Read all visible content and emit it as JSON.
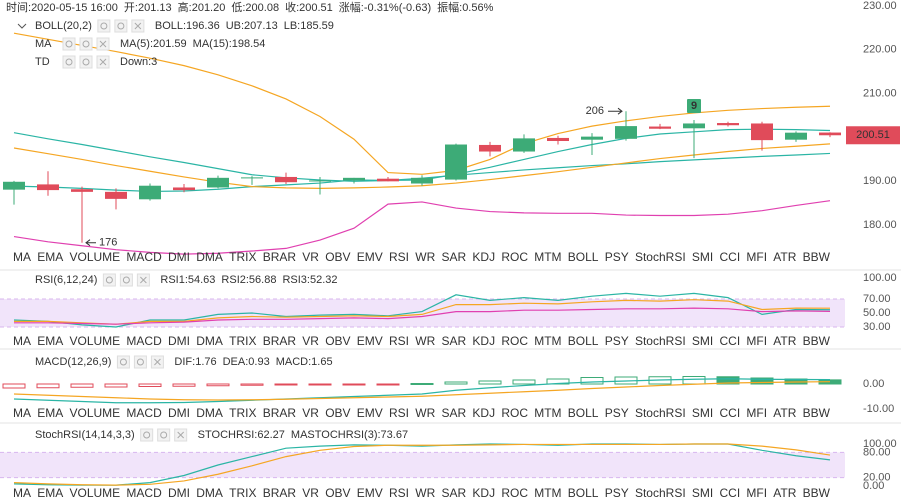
{
  "header": [
    {
      "label": "时间:",
      "value": "2020-05-15 16:00"
    },
    {
      "label": "开:",
      "value": "201.13"
    },
    {
      "label": "高:",
      "value": "201.20"
    },
    {
      "label": "低:",
      "value": "200.08"
    },
    {
      "label": "收:",
      "value": "200.51"
    },
    {
      "label": "涨幅:",
      "value": "-0.31%(-0.63)",
      "color": "#e04b5a"
    },
    {
      "label": "振幅:",
      "value": "0.56%"
    }
  ],
  "indicator_tabs": [
    "MA",
    "EMA",
    "VOLUME",
    "MACD",
    "DMI",
    "DMA",
    "TRIX",
    "BRAR",
    "VR",
    "OBV",
    "EMV",
    "RSI",
    "WR",
    "SAR",
    "KDJ",
    "ROC",
    "MTM",
    "BOLL",
    "PSY",
    "StochRSI",
    "SMI",
    "CCI",
    "MFI",
    "ATR",
    "BBW"
  ],
  "chart_data": [
    {
      "type": "candlestick",
      "open": [
        188.1,
        189.3,
        188.2,
        187.6,
        185.9,
        188.6,
        188.6,
        190.7,
        191.0,
        190.1,
        190.2,
        190.6,
        189.5,
        190.4,
        198.3,
        196.8,
        199.9,
        199.5,
        199.7,
        202.5,
        202.1,
        203.3,
        203.2,
        199.5,
        201.13
      ],
      "high": [
        190.1,
        192.3,
        188.8,
        188.4,
        189.5,
        189.4,
        191.3,
        191.2,
        192.0,
        191.0,
        190.8,
        191.0,
        191.4,
        198.6,
        199.0,
        200.7,
        200.4,
        201.0,
        206.0,
        203.1,
        204.0,
        203.6,
        203.6,
        201.4,
        201.2
      ],
      "low": [
        184.7,
        186.7,
        176.0,
        183.6,
        185.6,
        187.5,
        188.4,
        189.2,
        189.4,
        187.0,
        189.5,
        190.0,
        189.0,
        190.2,
        195.7,
        196.5,
        198.4,
        196.0,
        199.3,
        201.9,
        195.3,
        202.5,
        197.0,
        199.0,
        200.08
      ],
      "close": [
        189.9,
        188.0,
        187.6,
        186.0,
        189.0,
        188.0,
        190.8,
        190.9,
        189.8,
        190.2,
        190.8,
        190.0,
        190.8,
        198.4,
        196.8,
        199.8,
        199.2,
        200.2,
        202.6,
        202.0,
        203.2,
        202.8,
        199.4,
        201.1,
        200.51
      ],
      "up_color": "#3dab77",
      "down_color": "#e04b5a",
      "high_label": "206",
      "low_label": "176",
      "ylim": [
        170,
        230
      ],
      "yticks": [
        {
          "value": 230,
          "label": "230.00"
        },
        {
          "value": 220,
          "label": "220.00"
        },
        {
          "value": 210,
          "label": "210.00"
        },
        {
          "value": 200,
          "label": "200.00"
        },
        {
          "value": 190,
          "label": "190.00"
        },
        {
          "value": 180,
          "label": "180.00"
        }
      ],
      "indicators": [
        {
          "name": "BOLL(20,2)",
          "series": [
            {
              "legend": "BOLL:196.36",
              "color": "#2bb5a5",
              "values": [
                201.1,
                199.7,
                198.4,
                197.0,
                195.6,
                194.3,
                192.9,
                191.5,
                190.8,
                190.3,
                190.0,
                190.2,
                190.7,
                191.4,
                192.0,
                192.6,
                193.1,
                193.6,
                194.0,
                194.5,
                194.9,
                195.3,
                195.7,
                196.0,
                196.36
              ]
            },
            {
              "legend": "UB:207.13",
              "color": "#f5a623",
              "values": [
                223.8,
                222.4,
                221.0,
                219.6,
                218.1,
                216.4,
                214.3,
                211.8,
                208.8,
                204.8,
                199.6,
                192.0,
                191.6,
                192.5,
                195.0,
                198.6,
                200.9,
                202.6,
                203.8,
                204.8,
                205.6,
                206.2,
                206.6,
                206.9,
                207.13
              ]
            },
            {
              "legend": "LB:185.59",
              "color": "#e040b0",
              "values": [
                177.4,
                176.2,
                175.3,
                174.4,
                173.8,
                173.4,
                173.6,
                174.1,
                174.7,
                176.6,
                179.3,
                184.8,
                185.3,
                183.9,
                183.1,
                182.8,
                182.7,
                182.7,
                182.3,
                182.2,
                182.2,
                182.5,
                183.3,
                184.5,
                185.59
              ]
            }
          ]
        },
        {
          "name": "MA",
          "series": [
            {
              "legend": "MA(5):201.59",
              "color": "#2bb5a5",
              "values": [
                188.9,
                188.7,
                188.4,
                188.0,
                187.7,
                187.8,
                188.2,
                188.8,
                189.2,
                189.6,
                190.3,
                190.2,
                190.3,
                191.6,
                193.2,
                195.0,
                196.8,
                198.4,
                199.8,
                200.8,
                201.3,
                201.8,
                201.9,
                201.8,
                201.59
              ]
            },
            {
              "legend": "MA(15):198.54",
              "color": "#f5a623",
              "values": [
                197.6,
                196.3,
                195.0,
                193.6,
                192.3,
                191.0,
                189.8,
                188.8,
                188.5,
                188.4,
                188.5,
                188.7,
                189.0,
                189.6,
                190.4,
                191.3,
                192.2,
                193.2,
                194.2,
                195.2,
                196.0,
                196.8,
                197.5,
                198.0,
                198.54
              ]
            }
          ]
        },
        {
          "name": "TD",
          "series": [
            {
              "legend": "Down:3",
              "color": "#e04b5a",
              "mark_color": "#3dab77",
              "counts": [
                null,
                null,
                null,
                null,
                null,
                null,
                null,
                null,
                null,
                null,
                null,
                null,
                null,
                null,
                null,
                null,
                null,
                null,
                null,
                null,
                9,
                null,
                null,
                null,
                null
              ]
            }
          ]
        }
      ]
    },
    {
      "type": "line",
      "title": "RSI(6,12,24)",
      "ylim": [
        0,
        100
      ],
      "yticks": [
        {
          "value": 100,
          "label": "100.00"
        },
        {
          "value": 70,
          "label": "70.00"
        },
        {
          "value": 50,
          "label": "50.00"
        },
        {
          "value": 30,
          "label": "30.00"
        }
      ],
      "band": [
        30,
        70
      ],
      "band_color": "#f1e4fa",
      "series": [
        {
          "legend": "RSI1:54.63",
          "color": "#2bb5a5",
          "values": [
            40,
            38,
            33,
            30,
            40,
            40,
            48,
            50,
            45,
            47,
            48,
            46,
            52,
            76,
            68,
            72,
            68,
            74,
            78,
            74,
            78,
            72,
            48,
            55,
            54.63
          ]
        },
        {
          "legend": "RSI2:56.88",
          "color": "#f5a623",
          "values": [
            38,
            38,
            36,
            34,
            38,
            38,
            43,
            45,
            44,
            45,
            46,
            45,
            48,
            62,
            62,
            64,
            63,
            66,
            68,
            67,
            69,
            67,
            55,
            57,
            56.88
          ]
        },
        {
          "legend": "RSI3:52.32",
          "color": "#e040b0",
          "values": [
            36,
            36,
            35,
            34,
            36,
            37,
            40,
            41,
            41,
            42,
            43,
            42,
            45,
            52,
            52,
            54,
            54,
            55,
            56,
            56,
            57,
            56,
            52,
            53,
            52.32
          ]
        }
      ]
    },
    {
      "type": "macd",
      "title": "MACD(12,26,9)",
      "ylim": [
        -14,
        12
      ],
      "yticks": [
        {
          "value": 0,
          "label": "0.00"
        },
        {
          "value": -10,
          "label": "-10.00"
        }
      ],
      "series": [
        {
          "legend": "DIF:1.76",
          "color": "#2bb5a5",
          "values": [
            -6,
            -6.5,
            -7,
            -7.5,
            -7.5,
            -7.4,
            -7,
            -6.5,
            -6,
            -5.5,
            -5,
            -4.5,
            -4,
            -2.5,
            -1.5,
            -0.6,
            0.2,
            0.8,
            1.2,
            1.6,
            1.9,
            2.1,
            1.9,
            1.8,
            1.76
          ]
        },
        {
          "legend": "DEA:0.93",
          "color": "#f5a623",
          "values": [
            -4,
            -4.5,
            -5,
            -5.5,
            -6,
            -6.3,
            -6.4,
            -6.3,
            -6.1,
            -5.8,
            -5.5,
            -5.2,
            -4.9,
            -4.3,
            -3.7,
            -3.1,
            -2.5,
            -1.8,
            -1.2,
            -0.6,
            -0.1,
            0.4,
            0.6,
            0.8,
            0.93
          ]
        }
      ],
      "histogram": {
        "legend": "MACD:1.65",
        "color": "#3dab77",
        "negative_color": "#e04b5a",
        "values": [
          -1.6,
          -1.5,
          -1.3,
          -1.2,
          -1.0,
          -0.9,
          -0.7,
          -0.5,
          -0.4,
          -0.3,
          -0.2,
          -0.1,
          0.2,
          0.8,
          1.2,
          1.6,
          2.0,
          2.6,
          2.8,
          2.9,
          3.0,
          2.9,
          2.4,
          2.0,
          1.65
        ]
      }
    },
    {
      "type": "line",
      "title": "StochRSI(14,14,3,3)",
      "ylim": [
        0,
        100
      ],
      "yticks": [
        {
          "value": 100,
          "label": "100.00"
        },
        {
          "value": 80,
          "label": "80.00"
        },
        {
          "value": 20,
          "label": "20.00"
        },
        {
          "value": 0,
          "label": "0.00"
        }
      ],
      "band": [
        20,
        80
      ],
      "band_color": "#f1e4fa",
      "series": [
        {
          "legend": "STOCHRSI:62.27",
          "color": "#2bb5a5",
          "values": [
            5,
            3,
            2,
            2,
            8,
            25,
            50,
            70,
            90,
            95,
            98,
            97,
            95,
            98,
            100,
            99,
            97,
            100,
            100,
            99,
            100,
            100,
            85,
            72,
            62.27
          ]
        },
        {
          "legend": "MASTOCHRSI(3):73.67",
          "color": "#f5a623",
          "values": [
            8,
            5,
            3,
            2,
            4,
            12,
            28,
            48,
            70,
            85,
            94,
            97,
            97,
            97,
            98,
            99,
            99,
            99,
            99,
            99,
            100,
            100,
            95,
            86,
            73.67
          ]
        }
      ]
    }
  ]
}
